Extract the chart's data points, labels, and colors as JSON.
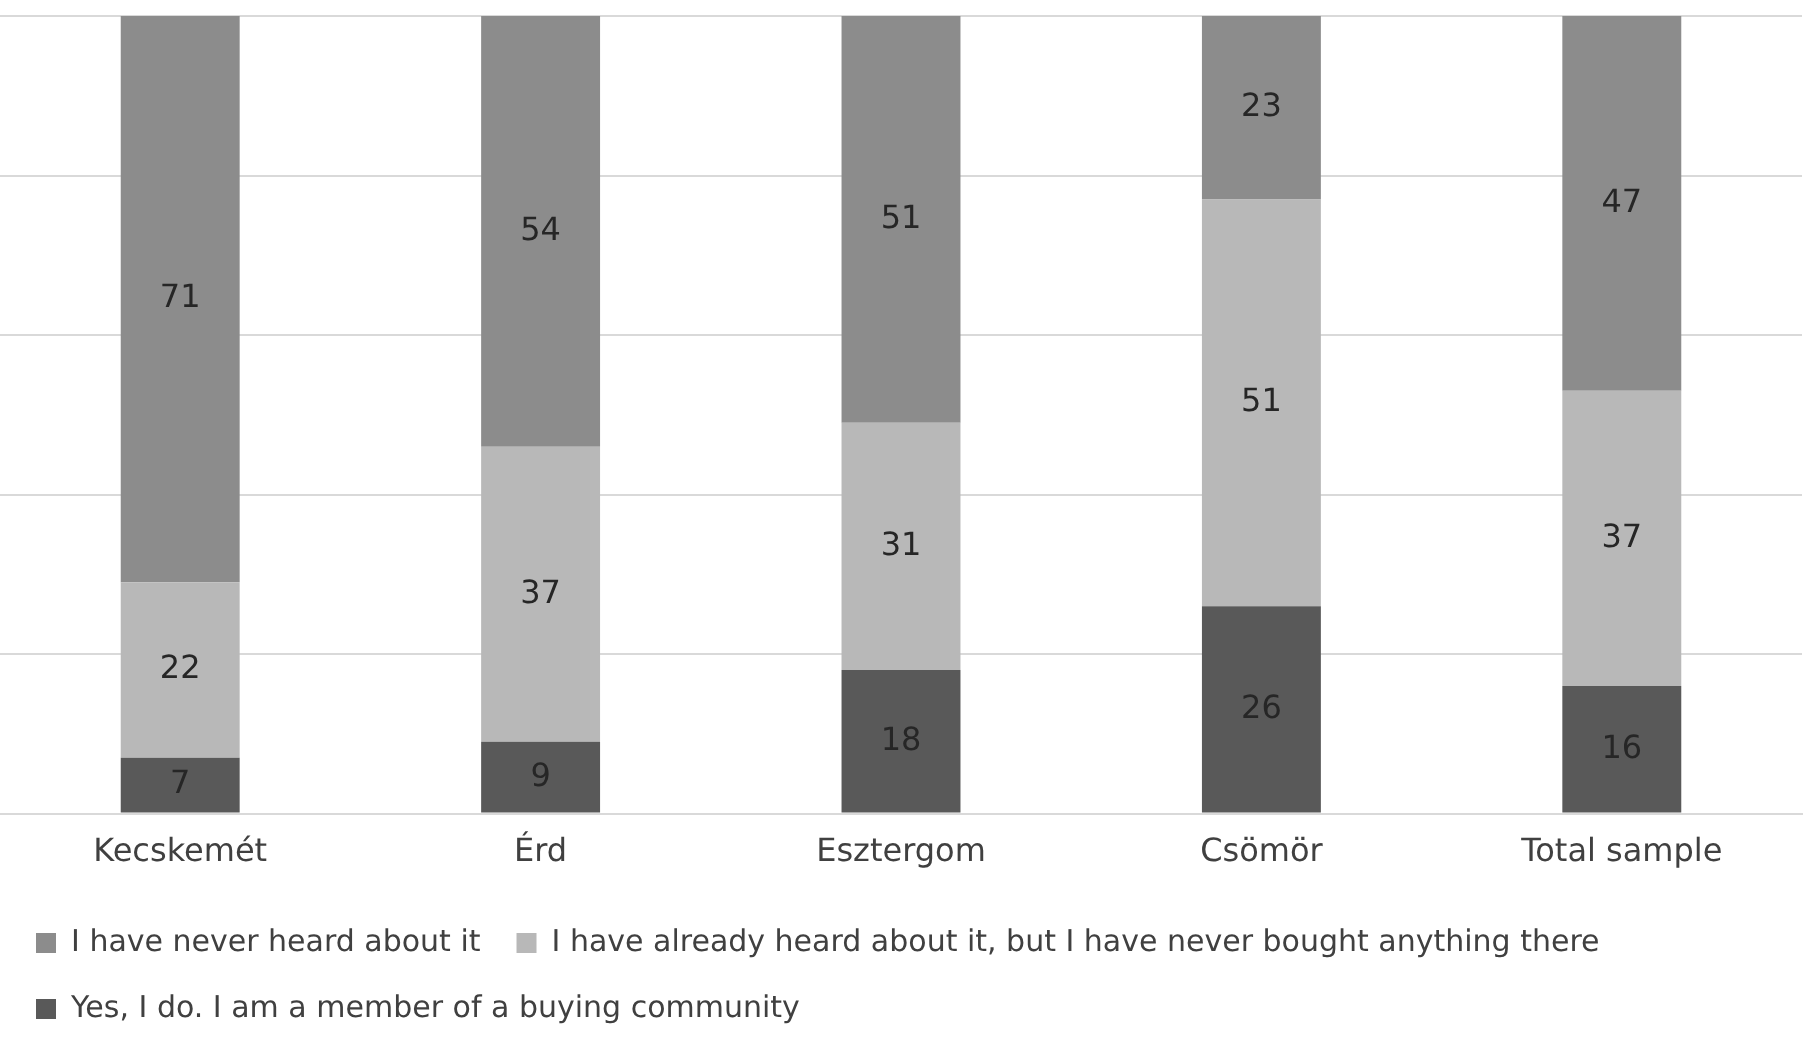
{
  "chart_data": {
    "type": "bar",
    "stacked": true,
    "categories": [
      "Kecskemét",
      "Érd",
      "Esztergom",
      "Csömör",
      "Total sample"
    ],
    "series": [
      {
        "name": "Yes, I do. I am a member of a buying community",
        "color": "#595959",
        "values": [
          7,
          9,
          18,
          26,
          16
        ]
      },
      {
        "name": "I have already heard about it, but I have never bought anything there",
        "color": "#b8b8b8",
        "values": [
          22,
          37,
          31,
          51,
          37
        ]
      },
      {
        "name": "I have never heard about it",
        "color": "#8c8c8c",
        "values": [
          71,
          54,
          51,
          23,
          47
        ]
      }
    ],
    "ylim": [
      0,
      100
    ],
    "yticks": [
      {
        "value": 0,
        "label": null
      },
      {
        "value": 20,
        "label": null
      },
      {
        "value": 40,
        "label": null
      },
      {
        "value": 60,
        "label": null
      },
      {
        "value": 80,
        "label": null
      },
      {
        "value": 100,
        "label": null
      }
    ],
    "grid": "y",
    "legend": "bottom",
    "data_labels": true
  }
}
